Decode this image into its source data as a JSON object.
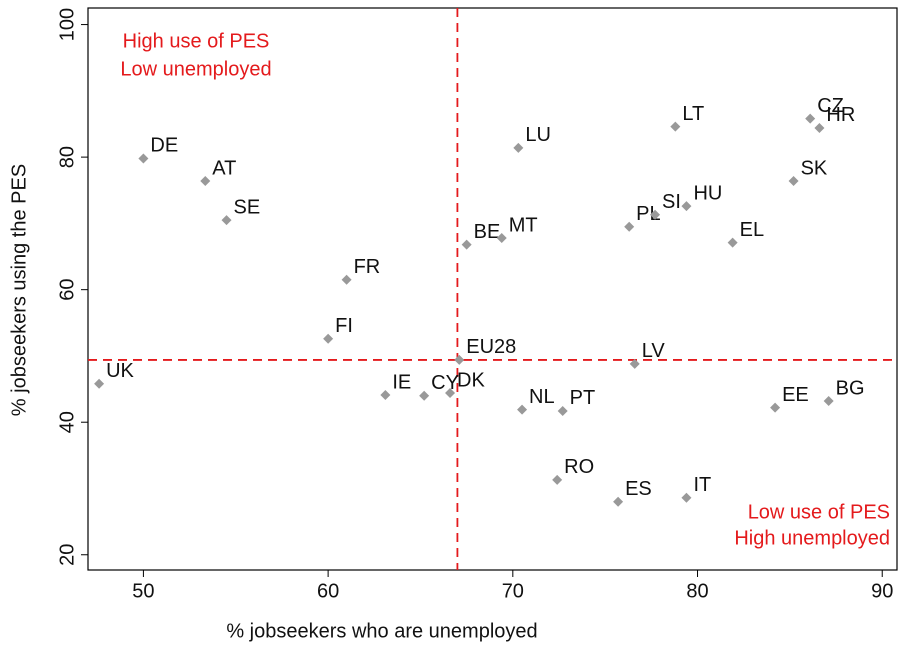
{
  "chart_data": {
    "type": "scatter",
    "xlabel": "% jobseekers who are unemployed",
    "ylabel": "% jobseekers using the PES",
    "labels": [
      "DE",
      "AT",
      "SE",
      "FR",
      "FI",
      "UK",
      "IE",
      "CY",
      "DK",
      "EU28",
      "BE",
      "MT",
      "LU",
      "NL",
      "PT",
      "RO",
      "ES",
      "IT",
      "LV",
      "PL",
      "SI",
      "HU",
      "LT",
      "EL",
      "EE",
      "BG",
      "SK",
      "CZ",
      "HR"
    ],
    "x": [
      50.0,
      53.35,
      54.5,
      61.0,
      60.0,
      47.6,
      63.1,
      65.2,
      66.6,
      67.1,
      67.5,
      69.4,
      70.3,
      70.5,
      72.7,
      72.4,
      75.7,
      79.4,
      76.6,
      76.3,
      77.7,
      79.4,
      78.8,
      81.9,
      84.2,
      87.1,
      85.2,
      86.1,
      86.6
    ],
    "values": [
      79.8,
      76.4,
      70.5,
      61.5,
      52.6,
      45.8,
      44.1,
      44.0,
      44.4,
      49.4,
      66.8,
      67.8,
      81.4,
      41.9,
      41.7,
      31.3,
      28.0,
      28.6,
      48.8,
      69.5,
      71.3,
      72.6,
      84.6,
      67.1,
      42.2,
      43.2,
      76.4,
      85.8,
      84.4
    ],
    "color": "#999999",
    "xlim": [
      47,
      90.8
    ],
    "xticks": [
      50,
      60,
      70,
      80,
      90
    ],
    "ylim": [
      17.7,
      102.5
    ],
    "yticks": [
      20,
      40,
      60,
      80,
      100
    ],
    "reference_x": 67.0,
    "reference_y": 49.4,
    "reference_color": "#e41a1c",
    "annotations": {
      "top_left": [
        "High use of PES",
        "Low unemployed"
      ],
      "bottom_right": [
        "Low use of PES",
        "High unemployed"
      ]
    }
  }
}
